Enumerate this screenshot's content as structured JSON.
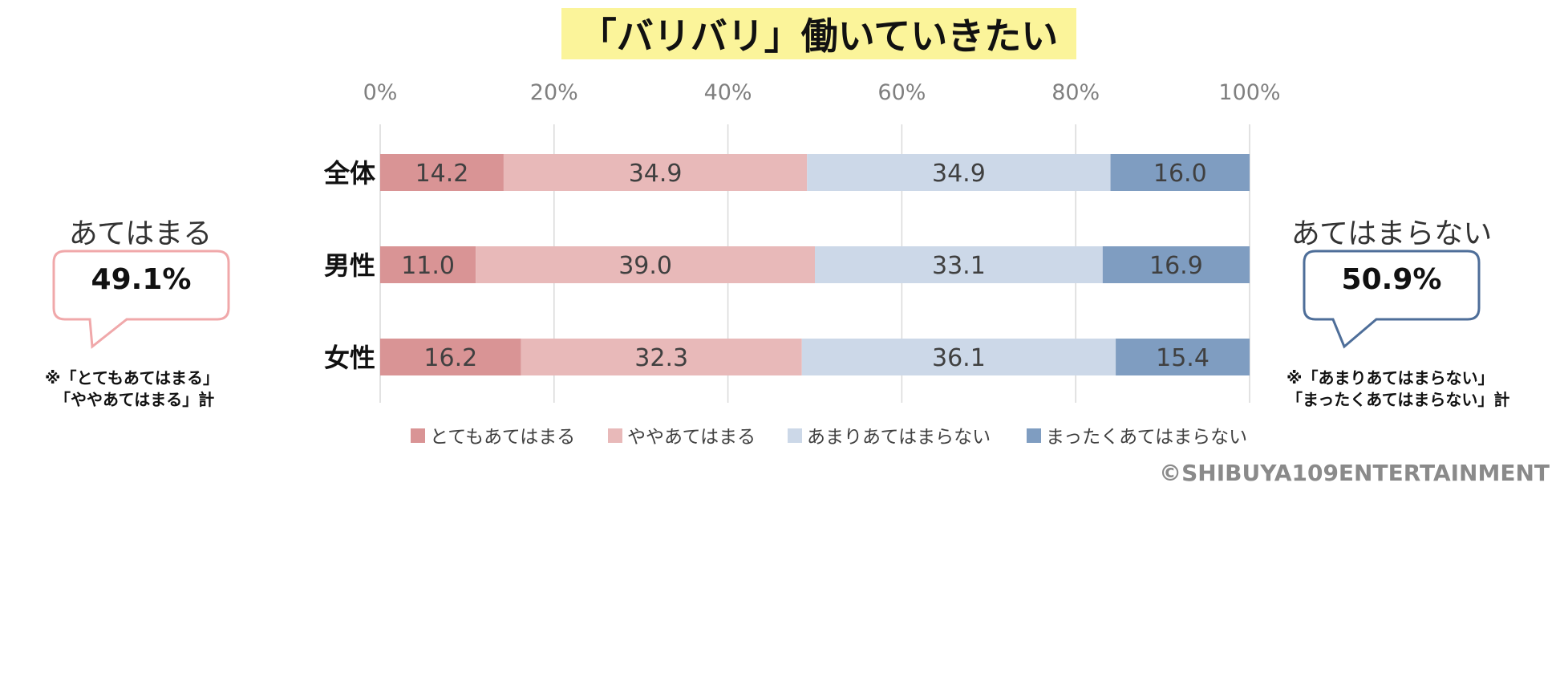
{
  "title": "「バリバリ」働いていきたい",
  "title_bg": "#fbf49a",
  "chart_data": {
    "type": "bar",
    "orientation": "horizontal",
    "stacked": true,
    "categories": [
      "全体",
      "男性",
      "女性"
    ],
    "series": [
      {
        "name": "とてもあてはまる",
        "color": "#d99495",
        "values": [
          14.2,
          11.0,
          16.2
        ]
      },
      {
        "name": "ややあてはまる",
        "color": "#e8b9b9",
        "values": [
          34.9,
          39.0,
          32.3
        ]
      },
      {
        "name": "あまりあてはまらない",
        "color": "#ccd8e8",
        "values": [
          34.9,
          33.1,
          36.1
        ]
      },
      {
        "name": "まったくあてはまらない",
        "color": "#7f9dc1",
        "values": [
          16.0,
          16.9,
          15.4
        ]
      }
    ],
    "xlim": [
      0,
      100
    ],
    "xticks": [
      "0%",
      "20%",
      "40%",
      "60%",
      "80%",
      "100%"
    ],
    "x_axis_position": "top",
    "grid": true,
    "legend_position": "bottom"
  },
  "callouts": [
    {
      "heading": "あてはまる",
      "value": "49.1%",
      "note": [
        "※「とてもあてはまる」",
        "「ややあてはまる」計"
      ],
      "border_color": "#f0a8aa"
    },
    {
      "heading": "あてはまらない",
      "value": "50.9%",
      "note": [
        "※「あまりあてはまらない」",
        "「まったくあてはまらない」計"
      ],
      "border_color": "#4e6e99"
    }
  ],
  "copyright": "©SHIBUYA109ENTERTAINMENT"
}
